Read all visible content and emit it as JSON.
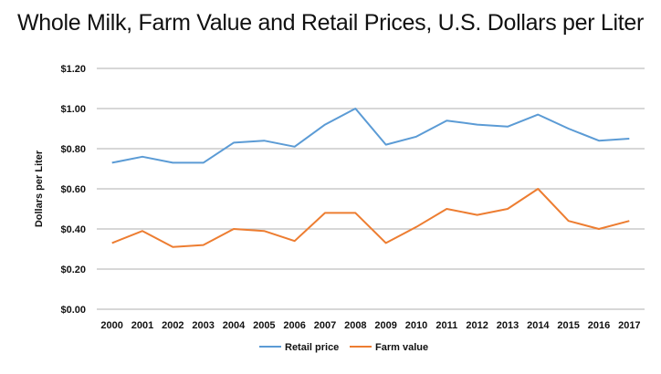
{
  "chart_data": {
    "type": "line",
    "title": "Whole Milk, Farm Value and Retail Prices, U.S. Dollars per Liter",
    "xlabel": "",
    "ylabel": "Dollars per Liter",
    "ylim": [
      0,
      1.2
    ],
    "yticks": [
      "$0.00",
      "$0.20",
      "$0.40",
      "$0.60",
      "$0.80",
      "$1.00",
      "$1.20"
    ],
    "grid": true,
    "legend_position": "bottom",
    "categories": [
      "2000",
      "2001",
      "2002",
      "2003",
      "2004",
      "2005",
      "2006",
      "2007",
      "2008",
      "2009",
      "2010",
      "2011",
      "2012",
      "2013",
      "2014",
      "2015",
      "2016",
      "2017"
    ],
    "series": [
      {
        "name": "Retail price",
        "color": "#5b9bd5",
        "values": [
          0.73,
          0.76,
          0.73,
          0.73,
          0.83,
          0.84,
          0.81,
          0.92,
          1.0,
          0.82,
          0.86,
          0.94,
          0.92,
          0.91,
          0.97,
          0.9,
          0.84,
          0.85
        ]
      },
      {
        "name": "Farm value",
        "color": "#ed7d31",
        "values": [
          0.33,
          0.39,
          0.31,
          0.32,
          0.4,
          0.39,
          0.34,
          0.48,
          0.48,
          0.33,
          0.41,
          0.5,
          0.47,
          0.5,
          0.6,
          0.44,
          0.4,
          0.44
        ]
      }
    ]
  }
}
